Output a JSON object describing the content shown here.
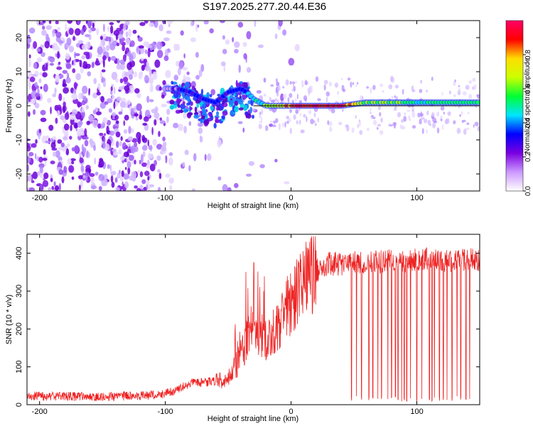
{
  "title": "S197.2025.277.20.44.E36",
  "chart_data": [
    {
      "type": "heatmap",
      "name": "spectrogram",
      "xlabel": "Height of straight line (km)",
      "ylabel": "Frequency (Hz)",
      "xlim": [
        -210,
        150
      ],
      "ylim": [
        -25,
        25
      ],
      "xticks": [
        -200,
        -100,
        0,
        100
      ],
      "yticks": [
        -20,
        -10,
        0,
        10,
        20
      ],
      "colorbar": {
        "label": "Normalized spectral amplitude",
        "range": [
          0.0,
          1.0
        ],
        "ticks": [
          "0.0",
          "0.2",
          "0.4",
          "0.6",
          "0.8"
        ],
        "tick_values": [
          0.0,
          0.2,
          0.4,
          0.6,
          0.8
        ],
        "colors": [
          "#ffffff",
          "#cc99ff",
          "#7b00e0",
          "#0000ff",
          "#00e5ff",
          "#00ff33",
          "#ccff00",
          "#ffdd00",
          "#ff0000",
          "#ff0066"
        ]
      },
      "signal_track": {
        "x": [
          -105,
          -90,
          -80,
          -70,
          -60,
          -50,
          -40,
          -35,
          -30,
          -25,
          -20,
          -10,
          0,
          20,
          40,
          60,
          80,
          100,
          120,
          150
        ],
        "frequency": [
          5,
          5,
          4,
          2,
          1,
          4,
          5,
          4,
          2,
          1,
          0,
          0,
          0,
          0,
          0,
          1,
          1,
          1,
          1,
          1
        ],
        "amplitude": [
          0.2,
          0.25,
          0.3,
          0.3,
          0.3,
          0.35,
          0.35,
          0.4,
          0.45,
          0.5,
          0.6,
          0.7,
          0.85,
          0.9,
          0.9,
          0.6,
          0.65,
          0.5,
          0.55,
          0.55
        ]
      }
    },
    {
      "type": "line",
      "name": "snr",
      "xlabel": "Height of straight line (km)",
      "ylabel": "SNR (10 * v/v)",
      "xlim": [
        -210,
        150
      ],
      "ylim": [
        0,
        450
      ],
      "xticks": [
        -200,
        -100,
        0,
        100
      ],
      "yticks": [
        0,
        100,
        200,
        300,
        400
      ],
      "color": "#ee2222",
      "envelope": {
        "x": [
          -210,
          -160,
          -120,
          -100,
          -90,
          -80,
          -60,
          -50,
          -42,
          -38,
          -34,
          -30,
          -25,
          -20,
          -10,
          0,
          10,
          20,
          30,
          50,
          80,
          100,
          120,
          150
        ],
        "y": [
          22,
          20,
          22,
          28,
          40,
          55,
          60,
          65,
          110,
          140,
          175,
          210,
          180,
          165,
          200,
          265,
          310,
          350,
          368,
          372,
          375,
          380,
          378,
          380
        ]
      },
      "dropouts_x": [
        48,
        52,
        56,
        62,
        65,
        69,
        72,
        77,
        80,
        83,
        85,
        88,
        90,
        92,
        95,
        100,
        104,
        110,
        112,
        114,
        118,
        121,
        124,
        128,
        132,
        135,
        139,
        142
      ]
    }
  ]
}
